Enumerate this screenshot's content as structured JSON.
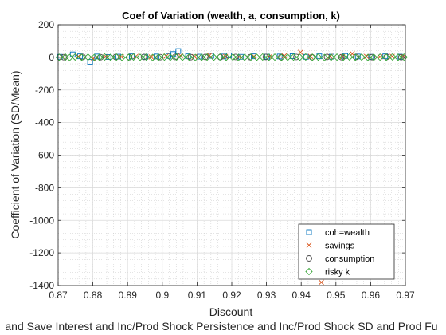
{
  "chart_data": {
    "type": "scatter",
    "title": "Coef of Variation (wealth, a, consumption, k)",
    "xlabel": "Discount",
    "ylabel": "Coefficient of Variation (SD/Mean)",
    "x_caption": "and Save Interest and Inc/Prod Shock Persistence and Inc/Prod Shock SD and Prod Fu",
    "xlim": [
      0.87,
      0.97
    ],
    "ylim": [
      -1400,
      200
    ],
    "xticks": [
      0.87,
      0.88,
      0.89,
      0.9,
      0.91,
      0.92,
      0.93,
      0.94,
      0.95,
      0.96,
      0.97
    ],
    "xtick_labels": [
      "0.87",
      "0.88",
      "0.89",
      "0.9",
      "0.91",
      "0.92",
      "0.93",
      "0.94",
      "0.95",
      "0.96",
      "0.97"
    ],
    "yticks": [
      200,
      0,
      -200,
      -400,
      -600,
      -800,
      -1000,
      -1200,
      -1400
    ],
    "ytick_labels": [
      "200",
      "0",
      "-200",
      "-400",
      "-600",
      "-800",
      "-1000",
      "-1200",
      "-1400"
    ],
    "grid": true,
    "minor_grid": true,
    "legend_position": "bottom-right",
    "series": [
      {
        "name": "coh=wealth",
        "marker": "square",
        "color": "#0072BD",
        "points": [
          [
            0.8705,
            3
          ],
          [
            0.8742,
            18
          ],
          [
            0.8763,
            6
          ],
          [
            0.8792,
            -28
          ],
          [
            0.8812,
            5
          ],
          [
            0.8845,
            2
          ],
          [
            0.8873,
            4
          ],
          [
            0.8912,
            6
          ],
          [
            0.8951,
            3
          ],
          [
            0.8983,
            5
          ],
          [
            0.9018,
            8
          ],
          [
            0.9031,
            20
          ],
          [
            0.9046,
            38
          ],
          [
            0.9074,
            6
          ],
          [
            0.9108,
            4
          ],
          [
            0.9141,
            9
          ],
          [
            0.9177,
            5
          ],
          [
            0.9192,
            12
          ],
          [
            0.9226,
            3
          ],
          [
            0.9263,
            6
          ],
          [
            0.9302,
            4
          ],
          [
            0.9338,
            5
          ],
          [
            0.9375,
            7
          ],
          [
            0.9414,
            3
          ],
          [
            0.9452,
            6
          ],
          [
            0.9488,
            4
          ],
          [
            0.9527,
            8
          ],
          [
            0.9563,
            5
          ],
          [
            0.9601,
            3
          ],
          [
            0.9642,
            6
          ],
          [
            0.9684,
            4
          ]
        ]
      },
      {
        "name": "savings",
        "marker": "x",
        "color": "#D95319",
        "points": [
          [
            0.8712,
            2
          ],
          [
            0.8758,
            5
          ],
          [
            0.8801,
            -8
          ],
          [
            0.8837,
            4
          ],
          [
            0.8882,
            3
          ],
          [
            0.8924,
            6
          ],
          [
            0.8968,
            2
          ],
          [
            0.9011,
            7
          ],
          [
            0.9052,
            10
          ],
          [
            0.9093,
            4
          ],
          [
            0.9136,
            12
          ],
          [
            0.9182,
            5
          ],
          [
            0.9221,
            3
          ],
          [
            0.9264,
            6
          ],
          [
            0.9309,
            4
          ],
          [
            0.9351,
            8
          ],
          [
            0.9398,
            30
          ],
          [
            0.9427,
            5
          ],
          [
            0.9458,
            -1380
          ],
          [
            0.9483,
            6
          ],
          [
            0.9519,
            4
          ],
          [
            0.9547,
            22
          ],
          [
            0.9588,
            5
          ],
          [
            0.9627,
            3
          ],
          [
            0.9662,
            6
          ],
          [
            0.9693,
            4
          ]
        ]
      },
      {
        "name": "consumption",
        "marker": "circle",
        "color": "#4D4D4D",
        "points": [
          [
            0.8716,
            1
          ],
          [
            0.8771,
            2
          ],
          [
            0.8822,
            1
          ],
          [
            0.8866,
            2
          ],
          [
            0.8905,
            1
          ],
          [
            0.8947,
            2
          ],
          [
            0.8994,
            1
          ],
          [
            0.9037,
            2
          ],
          [
            0.9082,
            1
          ],
          [
            0.9124,
            2
          ],
          [
            0.9167,
            1
          ],
          [
            0.9211,
            2
          ],
          [
            0.9253,
            1
          ],
          [
            0.9298,
            2
          ],
          [
            0.9342,
            1
          ],
          [
            0.9386,
            2
          ],
          [
            0.9431,
            1
          ],
          [
            0.9474,
            2
          ],
          [
            0.9516,
            1
          ],
          [
            0.9558,
            2
          ],
          [
            0.9604,
            1
          ],
          [
            0.9646,
            2
          ],
          [
            0.9688,
            1
          ]
        ]
      },
      {
        "name": "risky k",
        "marker": "diamond",
        "color": "#3AA63A",
        "points": [
          [
            0.8703,
            0
          ],
          [
            0.8721,
            1
          ],
          [
            0.8733,
            -1
          ],
          [
            0.8749,
            2
          ],
          [
            0.8768,
            0
          ],
          [
            0.8786,
            1
          ],
          [
            0.8804,
            -1
          ],
          [
            0.8819,
            0
          ],
          [
            0.8834,
            2
          ],
          [
            0.8851,
            0
          ],
          [
            0.8868,
            1
          ],
          [
            0.8884,
            -1
          ],
          [
            0.8903,
            0
          ],
          [
            0.8917,
            2
          ],
          [
            0.8936,
            0
          ],
          [
            0.8954,
            1
          ],
          [
            0.8972,
            -1
          ],
          [
            0.8989,
            0
          ],
          [
            0.9006,
            1
          ],
          [
            0.9023,
            0
          ],
          [
            0.9041,
            2
          ],
          [
            0.9058,
            0
          ],
          [
            0.9077,
            1
          ],
          [
            0.9095,
            -1
          ],
          [
            0.9113,
            0
          ],
          [
            0.9129,
            1
          ],
          [
            0.9148,
            0
          ],
          [
            0.9166,
            2
          ],
          [
            0.9184,
            0
          ],
          [
            0.9203,
            1
          ],
          [
            0.9219,
            -1
          ],
          [
            0.9237,
            0
          ],
          [
            0.9255,
            1
          ],
          [
            0.9272,
            0
          ],
          [
            0.9289,
            2
          ],
          [
            0.9307,
            0
          ],
          [
            0.9324,
            1
          ],
          [
            0.9343,
            -1
          ],
          [
            0.9361,
            0
          ],
          [
            0.9378,
            1
          ],
          [
            0.9396,
            0
          ],
          [
            0.9413,
            2
          ],
          [
            0.9432,
            0
          ],
          [
            0.9449,
            1
          ],
          [
            0.9467,
            -1
          ],
          [
            0.9486,
            0
          ],
          [
            0.9503,
            1
          ],
          [
            0.9521,
            0
          ],
          [
            0.9539,
            2
          ],
          [
            0.9556,
            0
          ],
          [
            0.9574,
            1
          ],
          [
            0.9592,
            -1
          ],
          [
            0.9609,
            0
          ],
          [
            0.9627,
            1
          ],
          [
            0.9645,
            0
          ],
          [
            0.9663,
            2
          ],
          [
            0.9679,
            0
          ],
          [
            0.9696,
            1
          ]
        ]
      }
    ]
  }
}
